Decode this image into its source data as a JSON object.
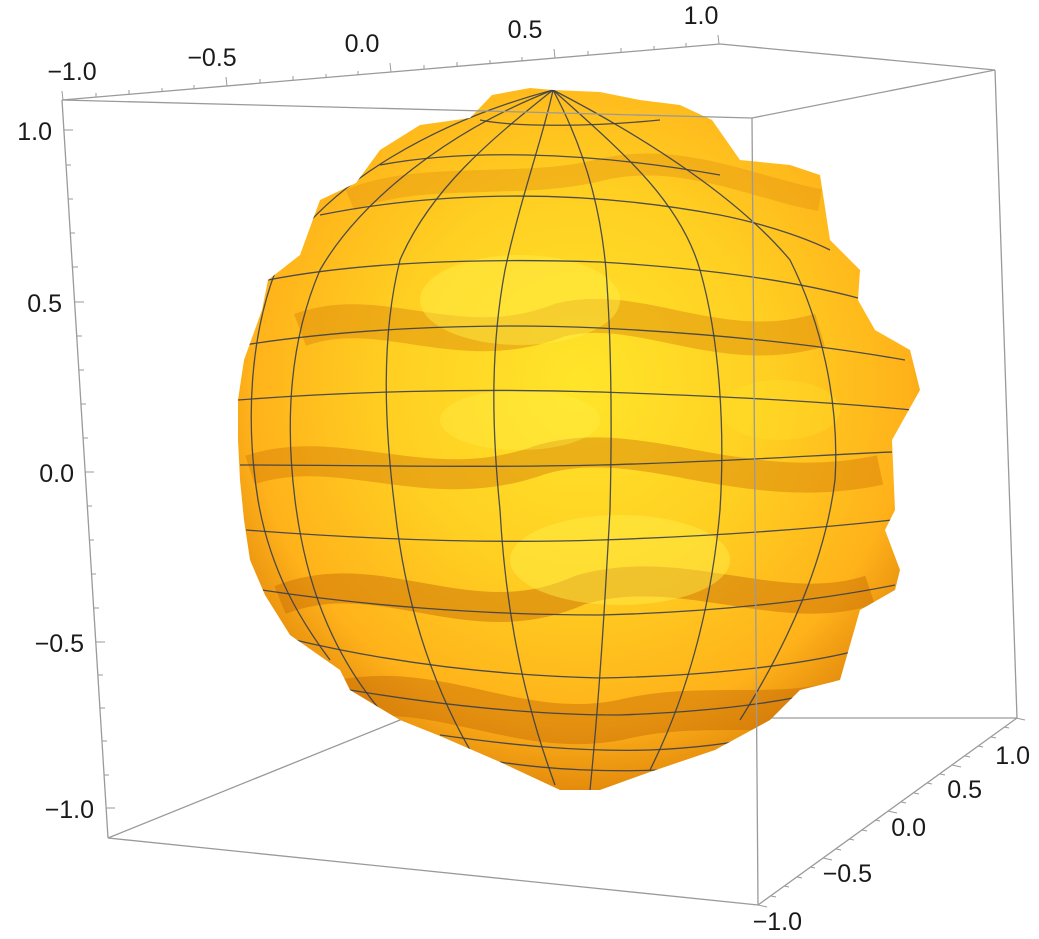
{
  "chart_data": {
    "type": "surface3d",
    "title": "",
    "surface_description": "bumpy sphere (radius about 0.9) with wave ripples and a latitude/longitude mesh",
    "colors": {
      "surface_light": "#ffe52a",
      "surface_mid": "#ffb21a",
      "surface_dark": "#d97b07",
      "mesh": "#3b3f4a",
      "box": "#9a9a9a"
    },
    "x_axis": {
      "range": [
        -1.0,
        1.0
      ],
      "ticks": [
        "−1.0",
        "−0.5",
        "0.0",
        "0.5",
        "1.0"
      ]
    },
    "y_axis": {
      "range": [
        -1.0,
        1.0
      ],
      "ticks": [
        "−1.0",
        "−0.5",
        "0.0",
        "0.5",
        "1.0"
      ]
    },
    "z_axis": {
      "range": [
        -1.0,
        1.0
      ],
      "ticks": [
        "−1.0",
        "−0.5",
        "0.0",
        "0.5",
        "1.0"
      ]
    },
    "box": true,
    "mesh": true
  }
}
